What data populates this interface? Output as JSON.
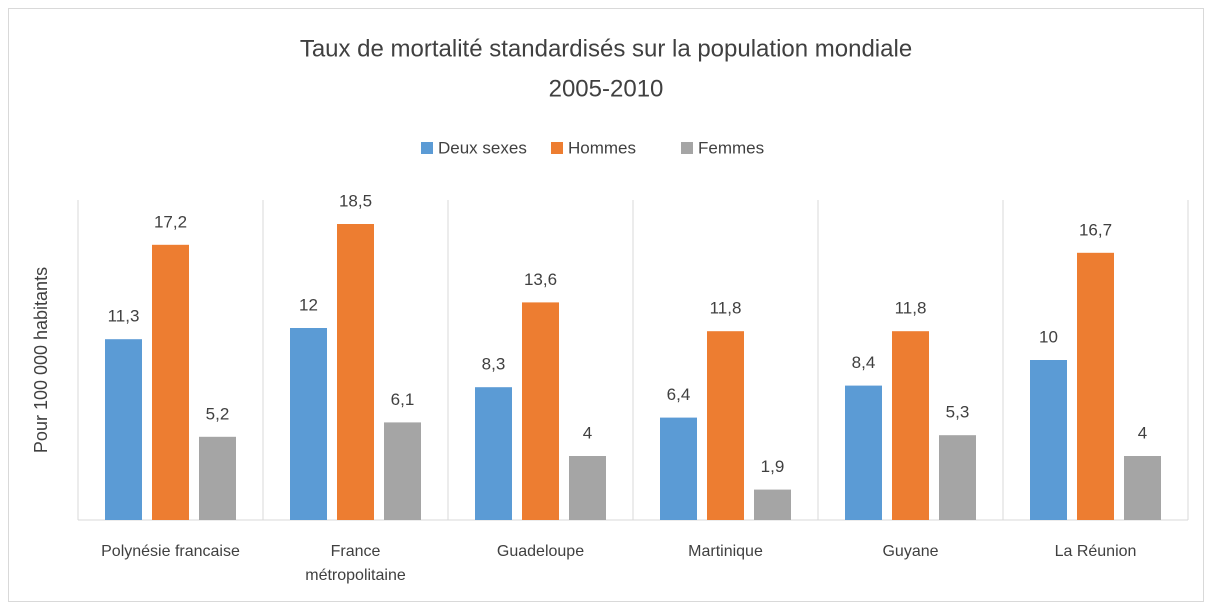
{
  "chart_data": {
    "type": "bar",
    "title": "Taux de mortalité standardisés sur la population mondiale",
    "subtitle": "2005-2010",
    "y_label": "Pour 100 000 habitants",
    "categories": [
      "Polynésie francaise",
      "France métropolitaine",
      "Guadeloupe",
      "Martinique",
      "Guyane",
      "La Réunion"
    ],
    "series": [
      {
        "name": "Deux sexes",
        "color": "#5b9bd5",
        "values": [
          11.3,
          12,
          8.3,
          6.4,
          8.4,
          10
        ],
        "value_labels": [
          "11,3",
          "12",
          "8,3",
          "6,4",
          "8,4",
          "10"
        ]
      },
      {
        "name": "Hommes",
        "color": "#ed7d31",
        "values": [
          17.2,
          18.5,
          13.6,
          11.8,
          11.8,
          16.7
        ],
        "value_labels": [
          "17,2",
          "18,5",
          "13,6",
          "11,8",
          "11,8",
          "16,7"
        ]
      },
      {
        "name": "Femmes",
        "color": "#a5a5a5",
        "values": [
          5.2,
          6.1,
          4,
          1.9,
          5.3,
          4
        ],
        "value_labels": [
          "5,2",
          "6,1",
          "4",
          "1,9",
          "5,3",
          "4"
        ]
      }
    ],
    "ylim": [
      0,
      20
    ],
    "legend": "top"
  }
}
